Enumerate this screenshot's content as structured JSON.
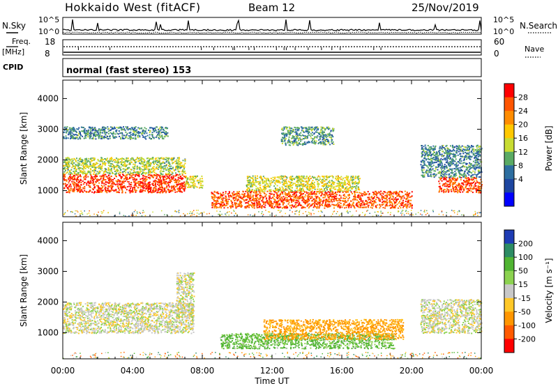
{
  "header": {
    "station": "Hokkaido West (fitACF)",
    "beam": "Beam 12",
    "date": "25/Nov/2019"
  },
  "noise_panel": {
    "left_label": "N.Sky",
    "right_label": "N.Search",
    "tick_top": "10^5",
    "tick_bottom": "10^0"
  },
  "freq_panel": {
    "left_label_1": "Freq.",
    "left_label_2": "[MHz]",
    "right_label": "Nave",
    "left_tick_top": "18",
    "left_tick_bottom": "8",
    "right_tick_top": "60",
    "right_tick_bottom": "0"
  },
  "cpid_panel": {
    "label": "CPID",
    "text": "normal (fast stereo) 153"
  },
  "power_colorbar": {
    "title": "Power [dB]",
    "ticks": [
      "28",
      "24",
      "20",
      "16",
      "12",
      "8",
      "4"
    ],
    "colors": [
      "#ff0000",
      "#ff5500",
      "#ff8c00",
      "#ffc800",
      "#c8dc32",
      "#5aaa64",
      "#2d6ea0",
      "#1e46a0",
      "#0000ff"
    ]
  },
  "velocity_colorbar": {
    "title": "Velocity [m s⁻¹]",
    "ticks": [
      "200",
      "100",
      "50",
      "15",
      "-15",
      "-50",
      "-100",
      "-200"
    ],
    "colors": [
      "#1e3cb4",
      "#2d8c64",
      "#50b432",
      "#8cd250",
      "#c8c8c8",
      "#ffc828",
      "#ff9600",
      "#ff5a00",
      "#ff0000"
    ]
  },
  "x_axis": {
    "label": "Time UT",
    "ticks": [
      "00:00",
      "04:00",
      "08:00",
      "12:00",
      "16:00",
      "20:00",
      "00:00"
    ]
  },
  "chart_data": [
    {
      "type": "heatmap",
      "variable": "Power [dB]",
      "ylabel": "Slant Range [km]",
      "xlabel": "",
      "yticks": [
        1000,
        2000,
        3000,
        4000
      ],
      "ylim": [
        150,
        4600
      ],
      "xlim": [
        0,
        24
      ],
      "regions": [
        {
          "t0": 0.0,
          "t1": 7.0,
          "r0": 950,
          "r1": 1550,
          "level": 28
        },
        {
          "t0": 0.0,
          "t1": 7.0,
          "r0": 1550,
          "r1": 2100,
          "level": 14
        },
        {
          "t0": 0.0,
          "t1": 6.0,
          "r0": 2700,
          "r1": 3100,
          "level": 9
        },
        {
          "t0": 7.0,
          "t1": 8.0,
          "r0": 1100,
          "r1": 1500,
          "level": 16
        },
        {
          "t0": 8.5,
          "t1": 20.0,
          "r0": 450,
          "r1": 1000,
          "level": 26
        },
        {
          "t0": 10.5,
          "t1": 17.0,
          "r0": 1000,
          "r1": 1500,
          "level": 16
        },
        {
          "t0": 12.5,
          "t1": 15.5,
          "r0": 2500,
          "r1": 3100,
          "level": 10
        },
        {
          "t0": 21.5,
          "t1": 24.0,
          "r0": 950,
          "r1": 1450,
          "level": 27
        },
        {
          "t0": 20.5,
          "t1": 24.0,
          "r0": 1450,
          "r1": 2500,
          "level": 9
        }
      ]
    },
    {
      "type": "heatmap",
      "variable": "Velocity [m s-1]",
      "ylabel": "Slant Range [km]",
      "xlabel": "Time UT",
      "yticks": [
        1000,
        2000,
        3000,
        4000
      ],
      "ylim": [
        150,
        4600
      ],
      "xlim": [
        0,
        24
      ],
      "regions": [
        {
          "t0": 0.0,
          "t1": 7.5,
          "r0": 1000,
          "r1": 2000,
          "level": 0
        },
        {
          "t0": 6.5,
          "t1": 7.5,
          "r0": 1500,
          "r1": 3000,
          "level": 0
        },
        {
          "t0": 9.0,
          "t1": 19.0,
          "r0": 500,
          "r1": 1000,
          "level": 40
        },
        {
          "t0": 11.5,
          "t1": 19.5,
          "r0": 800,
          "r1": 1450,
          "level": -60
        },
        {
          "t0": 20.5,
          "t1": 24.0,
          "r0": 1000,
          "r1": 2100,
          "level": 0
        }
      ]
    }
  ]
}
